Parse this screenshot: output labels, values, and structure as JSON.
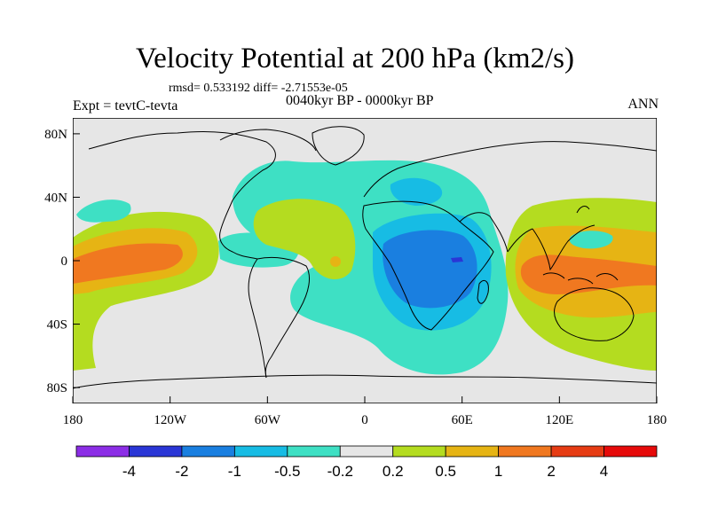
{
  "header": {
    "title": "Velocity Potential at 200 hPa (km2/s)",
    "stats": "rmsd= 0.533192 diff= -2.71553e-05",
    "experiment": "Expt = tevtC-tevta",
    "period": "0040kyr BP - 0000kyr BP",
    "season": "ANN"
  },
  "axes": {
    "y_ticks": [
      {
        "label": "80N",
        "lat": 80
      },
      {
        "label": "40N",
        "lat": 40
      },
      {
        "label": "0",
        "lat": 0
      },
      {
        "label": "40S",
        "lat": -40
      },
      {
        "label": "80S",
        "lat": -80
      }
    ],
    "x_ticks": [
      {
        "label": "180",
        "lon": -180
      },
      {
        "label": "120W",
        "lon": -120
      },
      {
        "label": "60W",
        "lon": -60
      },
      {
        "label": "0",
        "lon": 0
      },
      {
        "label": "60E",
        "lon": 60
      },
      {
        "label": "120E",
        "lon": 120
      },
      {
        "label": "180",
        "lon": 180
      }
    ]
  },
  "colorbar": {
    "labels": [
      "-4",
      "-2",
      "-1",
      "-0.5",
      "-0.2",
      "0.2",
      "0.5",
      "1",
      "2",
      "4"
    ],
    "colors": [
      "#8c2ee6",
      "#2a36d6",
      "#1a7fe0",
      "#17bce4",
      "#3ee0c4",
      "#e6e6e6",
      "#b4dc20",
      "#e6b414",
      "#f07820",
      "#e63c14",
      "#e60a0a"
    ]
  },
  "colors": {
    "background": "#e6e6e6",
    "coast": "#000000"
  }
}
